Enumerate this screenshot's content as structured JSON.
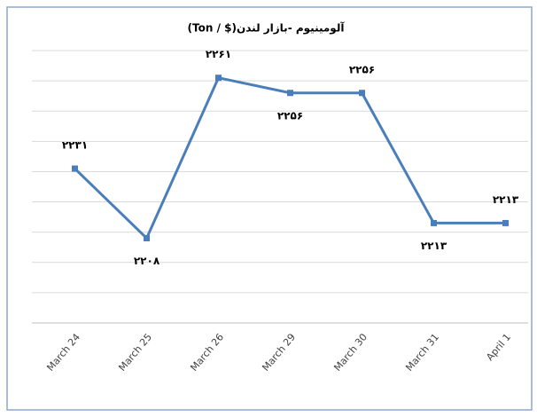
{
  "chart_data": {
    "type": "line",
    "title": "آلومینیوم -بازار لندن($ / Ton)",
    "categories": [
      "March 24",
      "March 25",
      "March 26",
      "March 29",
      "March 30",
      "March 31",
      "April 1"
    ],
    "series": [
      {
        "name": "آلومینیوم",
        "color": "#4a7ebb",
        "values": [
          2231,
          2208,
          2261,
          2256,
          2256,
          2213,
          2213
        ],
        "value_labels": [
          "۲۲۳۱",
          "۲۲۰۸",
          "۲۲۶۱",
          "۲۲۵۶",
          "۲۲۵۶",
          "۲۲۱۳",
          "۲۲۱۳"
        ]
      }
    ],
    "ylim": [
      2180,
      2270
    ],
    "yticks": [
      2180,
      2190,
      2200,
      2210,
      2220,
      2230,
      2240,
      2250,
      2260,
      2270
    ],
    "grid": true
  }
}
